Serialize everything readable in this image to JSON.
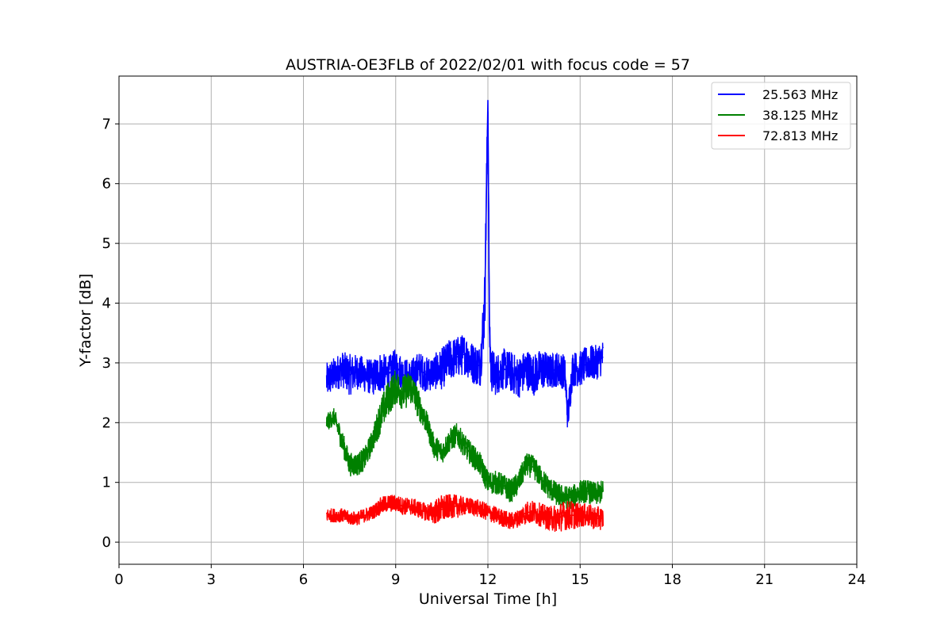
{
  "chart_data": {
    "type": "line",
    "title": "AUSTRIA-OE3FLB of 2022/02/01 with focus code = 57",
    "xlabel": "Universal Time [h]",
    "ylabel": "Y-factor [dB]",
    "xlim": [
      0,
      24
    ],
    "ylim": [
      -0.37,
      7.8
    ],
    "xticks": [
      0,
      3,
      6,
      9,
      12,
      15,
      18,
      21,
      24
    ],
    "yticks": [
      0,
      1,
      2,
      3,
      4,
      5,
      6,
      7
    ],
    "grid": true,
    "legend_position": "top-right",
    "series": [
      {
        "name": "25.563 MHz",
        "color": "#0000ff",
        "x": [
          6.75,
          7.0,
          7.25,
          7.5,
          7.75,
          8.0,
          8.25,
          8.5,
          8.75,
          9.0,
          9.25,
          9.5,
          9.75,
          10.0,
          10.25,
          10.5,
          10.75,
          11.0,
          11.25,
          11.5,
          11.75,
          11.9,
          11.95,
          12.0,
          12.05,
          12.1,
          12.25,
          12.5,
          12.75,
          13.0,
          13.25,
          13.5,
          13.75,
          14.0,
          14.25,
          14.5,
          14.6,
          14.75,
          15.0,
          15.25,
          15.5,
          15.75
        ],
        "y": [
          2.7,
          2.8,
          2.9,
          2.8,
          2.85,
          2.8,
          2.75,
          2.85,
          2.8,
          2.95,
          2.8,
          2.75,
          2.9,
          2.8,
          2.85,
          2.9,
          3.05,
          3.1,
          3.15,
          3.0,
          2.95,
          4.0,
          5.8,
          7.4,
          3.6,
          2.9,
          2.8,
          2.9,
          2.85,
          2.75,
          2.9,
          2.8,
          2.9,
          2.85,
          2.9,
          2.85,
          2.1,
          2.9,
          2.9,
          3.0,
          3.0,
          3.1
        ],
        "amplitude": [
          0.3,
          0.3,
          0.3,
          0.35,
          0.3,
          0.3,
          0.3,
          0.35,
          0.3,
          0.3,
          0.3,
          0.3,
          0.3,
          0.3,
          0.3,
          0.35,
          0.35,
          0.35,
          0.35,
          0.35,
          0.35,
          0.6,
          0.5,
          0.2,
          0.5,
          0.4,
          0.35,
          0.35,
          0.35,
          0.35,
          0.35,
          0.35,
          0.35,
          0.3,
          0.3,
          0.3,
          0.3,
          0.3,
          0.3,
          0.3,
          0.3,
          0.3
        ]
      },
      {
        "name": "38.125 MHz",
        "color": "#008000",
        "x": [
          6.75,
          7.0,
          7.25,
          7.5,
          7.75,
          8.0,
          8.25,
          8.5,
          8.75,
          9.0,
          9.25,
          9.5,
          9.75,
          10.0,
          10.25,
          10.5,
          10.75,
          11.0,
          11.25,
          11.5,
          11.75,
          12.0,
          12.25,
          12.5,
          12.75,
          13.0,
          13.25,
          13.5,
          13.75,
          14.0,
          14.25,
          14.5,
          14.75,
          15.0,
          15.25,
          15.5,
          15.75
        ],
        "y": [
          2.0,
          2.1,
          1.7,
          1.3,
          1.3,
          1.4,
          1.7,
          2.1,
          2.4,
          2.6,
          2.5,
          2.6,
          2.3,
          2.0,
          1.6,
          1.5,
          1.7,
          1.8,
          1.6,
          1.45,
          1.3,
          1.0,
          1.0,
          0.95,
          0.85,
          1.0,
          1.3,
          1.25,
          1.05,
          0.9,
          0.8,
          0.75,
          0.75,
          0.85,
          0.85,
          0.8,
          0.85
        ],
        "amplitude": [
          0.15,
          0.15,
          0.2,
          0.2,
          0.2,
          0.2,
          0.2,
          0.3,
          0.3,
          0.3,
          0.3,
          0.3,
          0.25,
          0.2,
          0.2,
          0.2,
          0.2,
          0.2,
          0.2,
          0.2,
          0.2,
          0.2,
          0.2,
          0.2,
          0.2,
          0.2,
          0.2,
          0.2,
          0.2,
          0.2,
          0.2,
          0.2,
          0.2,
          0.2,
          0.2,
          0.2,
          0.2
        ]
      },
      {
        "name": "72.813 MHz",
        "color": "#ff0000",
        "x": [
          6.75,
          7.0,
          7.25,
          7.5,
          7.75,
          8.0,
          8.25,
          8.5,
          8.75,
          9.0,
          9.25,
          9.5,
          9.75,
          10.0,
          10.25,
          10.5,
          10.75,
          11.0,
          11.25,
          11.5,
          11.75,
          12.0,
          12.25,
          12.5,
          12.75,
          13.0,
          13.25,
          13.5,
          13.75,
          14.0,
          14.25,
          14.5,
          14.75,
          15.0,
          15.25,
          15.5,
          15.75
        ],
        "y": [
          0.45,
          0.45,
          0.45,
          0.4,
          0.4,
          0.45,
          0.5,
          0.6,
          0.65,
          0.65,
          0.6,
          0.6,
          0.55,
          0.5,
          0.5,
          0.55,
          0.6,
          0.6,
          0.6,
          0.6,
          0.55,
          0.5,
          0.45,
          0.4,
          0.35,
          0.4,
          0.5,
          0.5,
          0.45,
          0.4,
          0.4,
          0.45,
          0.45,
          0.45,
          0.45,
          0.4,
          0.4
        ],
        "amplitude": [
          0.12,
          0.12,
          0.12,
          0.12,
          0.12,
          0.12,
          0.12,
          0.15,
          0.15,
          0.15,
          0.15,
          0.15,
          0.15,
          0.15,
          0.2,
          0.25,
          0.2,
          0.2,
          0.15,
          0.15,
          0.15,
          0.15,
          0.15,
          0.15,
          0.15,
          0.15,
          0.2,
          0.2,
          0.2,
          0.2,
          0.25,
          0.25,
          0.25,
          0.2,
          0.2,
          0.2,
          0.2
        ]
      }
    ]
  }
}
